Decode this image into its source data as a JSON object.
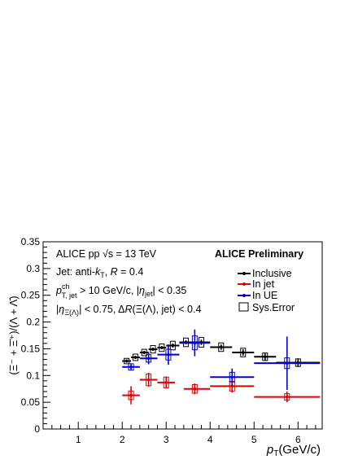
{
  "chart_data": {
    "type": "scatter",
    "title": "",
    "xlabel": "p_T (GeV/c)",
    "ylabel": "(Ξ⁻ + Ξ̄⁺)/(Λ + Λ̄)",
    "xlim": [
      0.2,
      6.55
    ],
    "ylim": [
      0,
      0.35
    ],
    "x_ticks": [
      1,
      2,
      3,
      4,
      5,
      6
    ],
    "y_ticks": [
      0,
      0.05,
      0.1,
      0.15,
      0.2,
      0.25,
      0.3,
      0.35
    ],
    "y_tick_labels": [
      "0",
      "0.05",
      "0.1",
      "0.15",
      "0.2",
      "0.25",
      "0.3",
      "0.35"
    ],
    "grid": false,
    "legend_position": "right",
    "annotations": {
      "collision": "ALICE pp √s = 13 TeV",
      "preliminary": "ALICE Preliminary",
      "jet_algo": "Jet: anti-k_T, R = 0.4",
      "jet_cut": "p_T,jet^ch > 10 GeV/c, |η_jet| < 0.35",
      "eta_cut": "|η_Ξ(Λ)| < 0.75, ΔR(Ξ(Λ), jet) < 0.4"
    },
    "legend": {
      "inclusive": "Inclusive",
      "in_jet": "In jet",
      "in_ue": "In UE",
      "sys": "Sys.Error"
    },
    "series": [
      {
        "name": "Inclusive",
        "color": "#000000",
        "points": [
          {
            "x": 2.1,
            "xlo": 2.0,
            "xhi": 2.2,
            "y": 0.127,
            "stat": 0.003,
            "sys": 0.005
          },
          {
            "x": 2.3,
            "xlo": 2.2,
            "xhi": 2.4,
            "y": 0.134,
            "stat": 0.003,
            "sys": 0.006
          },
          {
            "x": 2.5,
            "xlo": 2.4,
            "xhi": 2.6,
            "y": 0.143,
            "stat": 0.003,
            "sys": 0.006
          },
          {
            "x": 2.7,
            "xlo": 2.6,
            "xhi": 2.8,
            "y": 0.149,
            "stat": 0.003,
            "sys": 0.007
          },
          {
            "x": 2.9,
            "xlo": 2.8,
            "xhi": 3.0,
            "y": 0.152,
            "stat": 0.003,
            "sys": 0.007
          },
          {
            "x": 3.15,
            "xlo": 3.0,
            "xhi": 3.3,
            "y": 0.156,
            "stat": 0.004,
            "sys": 0.008
          },
          {
            "x": 3.45,
            "xlo": 3.3,
            "xhi": 3.6,
            "y": 0.162,
            "stat": 0.004,
            "sys": 0.008
          },
          {
            "x": 3.8,
            "xlo": 3.6,
            "xhi": 4.0,
            "y": 0.162,
            "stat": 0.005,
            "sys": 0.009
          },
          {
            "x": 4.25,
            "xlo": 4.0,
            "xhi": 4.5,
            "y": 0.153,
            "stat": 0.005,
            "sys": 0.008
          },
          {
            "x": 4.75,
            "xlo": 4.5,
            "xhi": 5.0,
            "y": 0.143,
            "stat": 0.006,
            "sys": 0.008
          },
          {
            "x": 5.25,
            "xlo": 5.0,
            "xhi": 5.5,
            "y": 0.135,
            "stat": 0.007,
            "sys": 0.007
          },
          {
            "x": 6.0,
            "xlo": 5.5,
            "xhi": 6.5,
            "y": 0.124,
            "stat": 0.008,
            "sys": 0.007
          }
        ]
      },
      {
        "name": "In jet",
        "color": "#e00000",
        "points": [
          {
            "x": 2.2,
            "xlo": 2.0,
            "xhi": 2.4,
            "y": 0.063,
            "stat": 0.017,
            "sys": 0.008
          },
          {
            "x": 2.6,
            "xlo": 2.4,
            "xhi": 2.8,
            "y": 0.092,
            "stat": 0.013,
            "sys": 0.011
          },
          {
            "x": 3.0,
            "xlo": 2.8,
            "xhi": 3.2,
            "y": 0.087,
            "stat": 0.011,
            "sys": 0.01
          },
          {
            "x": 3.65,
            "xlo": 3.4,
            "xhi": 4.0,
            "y": 0.075,
            "stat": 0.01,
            "sys": 0.008
          },
          {
            "x": 4.5,
            "xlo": 4.0,
            "xhi": 5.0,
            "y": 0.08,
            "stat": 0.012,
            "sys": 0.009
          },
          {
            "x": 5.75,
            "xlo": 5.0,
            "xhi": 6.5,
            "y": 0.06,
            "stat": 0.01,
            "sys": 0.006
          }
        ]
      },
      {
        "name": "In UE",
        "color": "#0000d0",
        "points": [
          {
            "x": 2.2,
            "xlo": 2.0,
            "xhi": 2.4,
            "y": 0.116,
            "stat": 0.006,
            "sys": 0.006
          },
          {
            "x": 2.6,
            "xlo": 2.4,
            "xhi": 2.8,
            "y": 0.132,
            "stat": 0.011,
            "sys": 0.007
          },
          {
            "x": 3.05,
            "xlo": 2.8,
            "xhi": 3.3,
            "y": 0.139,
            "stat": 0.019,
            "sys": 0.01
          },
          {
            "x": 3.65,
            "xlo": 3.3,
            "xhi": 4.0,
            "y": 0.161,
            "stat": 0.025,
            "sys": 0.013
          },
          {
            "x": 4.5,
            "xlo": 4.0,
            "xhi": 5.0,
            "y": 0.097,
            "stat": 0.016,
            "sys": 0.009
          },
          {
            "x": 5.75,
            "xlo": 5.0,
            "xhi": 6.5,
            "y": 0.123,
            "stat": 0.05,
            "sys": 0.01
          }
        ]
      }
    ]
  }
}
